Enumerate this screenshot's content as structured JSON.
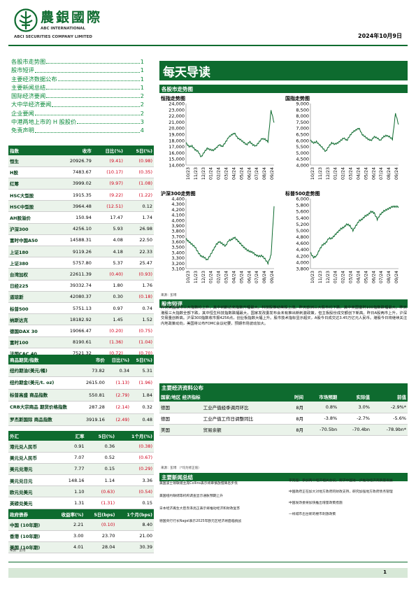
{
  "header": {
    "company_cn": "農銀國際",
    "company_en_1": "ABC INTERNATIONAL",
    "company_en_2": "ABCI SECURITIES COMPANY LIMITED",
    "date": "2024年10月9日"
  },
  "toc": [
    {
      "t": "各股市走势图",
      "p": "1"
    },
    {
      "t": "股市短评",
      "p": "1"
    },
    {
      "t": "主要经济数据公布",
      "p": "1"
    },
    {
      "t": "主要新闻总结",
      "p": "1"
    },
    {
      "t": "国际经济要闻",
      "p": "2"
    },
    {
      "t": "大中华经济要闻",
      "p": "2"
    },
    {
      "t": "企业要闻",
      "p": "2"
    },
    {
      "t": "中港两地上市的 H 股股价",
      "p": "3"
    },
    {
      "t": "免责声明",
      "p": "4"
    }
  ],
  "banner": "每天导读",
  "charts_section": "各股市走势图",
  "chart_data": [
    {
      "type": "line",
      "title": "恒指走势图",
      "ylim": [
        14000,
        24000
      ],
      "yticks": [
        "24,000",
        "23,000",
        "22,000",
        "21,000",
        "20,000",
        "19,000",
        "18,000",
        "17,000",
        "16,000",
        "15,000",
        "14,000"
      ],
      "xticks": [
        "10/23",
        "11/23",
        "12/23",
        "01/24",
        "02/24",
        "03/24",
        "04/24",
        "05/24",
        "06/24",
        "07/24",
        "08/24",
        "09/24"
      ],
      "series": [
        {
          "values": [
            17600,
            17000,
            17100,
            16500,
            16200,
            15300,
            16100,
            16700,
            16500,
            16400,
            16800,
            17300,
            17000,
            17700,
            18500,
            18900,
            19200,
            18400,
            18100,
            17700,
            17300,
            17800,
            17300,
            17100,
            17700,
            18300,
            18200,
            17800,
            22900,
            20900
          ]
        }
      ]
    },
    {
      "type": "line",
      "title": "国指走势图",
      "ylim": [
        4000,
        9000
      ],
      "yticks": [
        "9,000",
        "8,500",
        "8,000",
        "7,500",
        "7,000",
        "6,500",
        "6,000",
        "5,500",
        "5,000",
        "4,500",
        "4,000"
      ],
      "xticks": [
        "10/23",
        "11/23",
        "12/23",
        "01/24",
        "02/24",
        "03/24",
        "04/24",
        "05/24",
        "06/24",
        "07/24",
        "08/24",
        "09/24"
      ],
      "series": [
        {
          "values": [
            6000,
            5800,
            5900,
            5650,
            5400,
            5100,
            5500,
            5800,
            5700,
            5800,
            6000,
            6200,
            6000,
            6400,
            6700,
            6850,
            7000,
            6500,
            6300,
            6100,
            6000,
            6300,
            6200,
            6000,
            6300,
            6400,
            6300,
            6100,
            8200,
            7300
          ]
        }
      ]
    },
    {
      "type": "line",
      "title": "沪深300走势图",
      "ylim": [
        3100,
        4400
      ],
      "yticks": [
        "4,400",
        "4,300",
        "4,200",
        "4,100",
        "4,000",
        "3,900",
        "3,800",
        "3,700",
        "3,600",
        "3,500",
        "3,400",
        "3,300",
        "3,200",
        "3,100"
      ],
      "xticks": [
        "10/23",
        "11/23",
        "12/23",
        "01/24",
        "02/24",
        "03/24",
        "04/24",
        "05/24",
        "06/24",
        "07/24",
        "08/24",
        "09/24"
      ],
      "series": [
        {
          "values": [
            3650,
            3600,
            3550,
            3500,
            3400,
            3330,
            3310,
            3260,
            3350,
            3450,
            3550,
            3600,
            3560,
            3520,
            3620,
            3640,
            3680,
            3620,
            3560,
            3500,
            3450,
            3420,
            3400,
            3350,
            3330,
            3340,
            3280,
            3200,
            3350,
            4260
          ]
        }
      ]
    },
    {
      "type": "line",
      "title": "标普500走势图",
      "ylim": [
        3800,
        6000
      ],
      "yticks": [
        "6,000",
        "5,800",
        "5,600",
        "5,400",
        "5,200",
        "5,000",
        "4,800",
        "4,600",
        "4,400",
        "4,200",
        "4,000",
        "3,800"
      ],
      "xticks": [
        "10/23",
        "11/23",
        "12/23",
        "01/24",
        "02/24",
        "03/24",
        "04/24",
        "05/24",
        "06/24",
        "07/24",
        "08/24",
        "09/24"
      ],
      "series": [
        {
          "values": [
            4300,
            4150,
            4200,
            4400,
            4550,
            4600,
            4750,
            4750,
            4850,
            4950,
            5050,
            5100,
            5200,
            5150,
            5000,
            5150,
            5300,
            5350,
            5450,
            5500,
            5600,
            5550,
            5350,
            5500,
            5600,
            5650,
            5700,
            5750,
            5750,
            5750
          ]
        }
      ]
    }
  ],
  "chart_source": "来源：彭博",
  "stocks": {
    "headers": [
      "指数",
      "收市",
      "日比(%)",
      "5日(%)"
    ],
    "rows": [
      [
        "恒生",
        "20926.79",
        "(9.41)",
        "(0.98)"
      ],
      [
        "H股",
        "7483.67",
        "(10.17)",
        "(0.35)"
      ],
      [
        "红筹",
        "3999.02",
        "(9.97)",
        "(1.08)"
      ],
      [
        "HSC大型股",
        "1915.35",
        "(9.22)",
        "(1.22)"
      ],
      [
        "HSC中型股",
        "3964.48",
        "(12.51)",
        "0.12"
      ],
      [
        "AH股溢价",
        "150.94",
        "17.47",
        "1.74"
      ],
      [
        "沪深300",
        "4256.10",
        "5.93",
        "26.98"
      ],
      [
        "富时中国A50",
        "14588.31",
        "4.08",
        "22.50"
      ],
      [
        "上证180",
        "9119.26",
        "4.18",
        "22.33"
      ],
      [
        "上证380",
        "5757.80",
        "5.37",
        "25.47"
      ],
      [
        "台湾加权",
        "22611.39",
        "(0.40)",
        "(0.93)"
      ],
      [
        "日经225",
        "39332.74",
        "1.80",
        "1.76"
      ],
      [
        "道琼斯",
        "42080.37",
        "0.30",
        "(0.18)"
      ],
      [
        "标普500",
        "5751.13",
        "0.97",
        "0.74"
      ],
      [
        "纳斯达克",
        "18182.92",
        "1.45",
        "1.52"
      ],
      [
        "德国DAX 30",
        "19066.47",
        "(0.20)",
        "(0.75)"
      ],
      [
        "富时100",
        "8190.61",
        "(1.36)",
        "(1.04)"
      ],
      [
        "法国CAC 40",
        "7521.32",
        "(0.72)",
        "(0.70)"
      ]
    ]
  },
  "commodities": {
    "headers": [
      "商品期货/指数",
      "市价",
      "日比(%)",
      "5日(%)"
    ],
    "rows": [
      [
        "纽约期油(美元/桶)",
        "73.82",
        "0.34",
        "5.31"
      ],
      [
        "纽约期金(美元/t. oz)",
        "2615.00",
        "(1.13)",
        "(1.96)"
      ],
      [
        "标普高盛 商品指数",
        "550.81",
        "(2.79)",
        "1.84"
      ],
      [
        "CRB大宗商品 期货价格指数",
        "287.28",
        "(2.14)",
        "0.32"
      ],
      [
        "罗杰斯国际 商品指数",
        "3919.16",
        "(2.49)",
        "0.48"
      ]
    ]
  },
  "fx": {
    "headers": [
      "外汇",
      "汇率",
      "5日(%)",
      "1个月(%)"
    ],
    "rows": [
      [
        "港元兑人民币",
        "0.91",
        "0.36",
        "(0.38)"
      ],
      [
        "美元兑人民币",
        "7.07",
        "0.52",
        "(0.67)"
      ],
      [
        "美元兑港元",
        "7.77",
        "0.15",
        "(0.29)"
      ],
      [
        "美元兑日元",
        "148.16",
        "1.14",
        "3.36"
      ],
      [
        "欧元兑美元",
        "1.10",
        "(0.63)",
        "(0.54)"
      ],
      [
        "英磅兑美元",
        "1.31",
        "(1.31)",
        "0.15"
      ],
      [
        "澳元兑美元",
        "0.67",
        "(2.12)",
        "1.17"
      ]
    ]
  },
  "bonds": {
    "headers": [
      "政府债券",
      "收益率(%)",
      "5日(bps)",
      "1个月(bps)"
    ],
    "rows": [
      [
        "中国 (10年期)",
        "2.21",
        "(0.10)",
        "8.40"
      ],
      [
        "香港 (10年期)",
        "3.00",
        "23.70",
        "21.00"
      ],
      [
        "美国 (10年期)",
        "4.01",
        "28.04",
        "30.39"
      ]
    ]
  },
  "table_source": "来源：彭博",
  "commentary_title": "股市短评",
  "commentary": "昨天美国股市三大指数均上升，其中纳斯达克指数升幅最大。科技股推动美股上涨。昨天欧洲三大股市均下跌，其中英国富时100指数跌幅最大。昨天港股三大指数全部下跌，其中恒生科技指数跌幅最大，国家发改委发布会未有推出新刺激政策，但主板股份成交额创下新高。昨日A股两市上升，沪深交易量创新高。沪深300指数收市报4256点，创业板指数大幅上升。股市技术指标显示超买，A股今日成交达3.45万亿元人民币。港股今日将继续关注内地政策动向，美国将公布FOMC会议纪要，预期市场波动加大。",
  "econ": {
    "title": "主要经济资料公布",
    "headers": [
      "国家/地区 经济指标",
      "",
      "时间",
      "市场预期",
      "实际值",
      "前值"
    ],
    "rows": [
      [
        "德国",
        "工业产值经季调月环比",
        "8月",
        "0.8%",
        "3.0%",
        "-2.9%*"
      ],
      [
        "德国",
        "工业产值工作日调整同比",
        "8月",
        "-3.8%",
        "-2.7%",
        "-5.6%"
      ],
      [
        "美国",
        "贸易余额",
        "8月",
        "-70.5bn",
        "-70.4bn",
        "-78.9bn*"
      ]
    ],
    "source": "来源：彭博  （*均为修正值）"
  },
  "news": {
    "title": "主要新闻总结",
    "left": [
      "美国波士顿联储主席Collins表示将审慎放慢降息步伐",
      "美国纽约联储等机构调查显示通胀预期上升",
      "日本经济再生大臣赤泽亮正表示将推动经济和财政复苏",
      "德国央行行长Nagel表示2025年欧元区经济将面临挑战"
    ],
    "right": [
      "李克强：参加两个经济相关会议，要求中国进一步推动经济高质量发展",
      "中国政府正在加大对地方政府的财政支持，研究加强地方政府债务管理",
      "中国发改委将加快推出增量政策措施",
      "一线城市出台新的楼市刺激政策"
    ]
  },
  "page_number": "1"
}
